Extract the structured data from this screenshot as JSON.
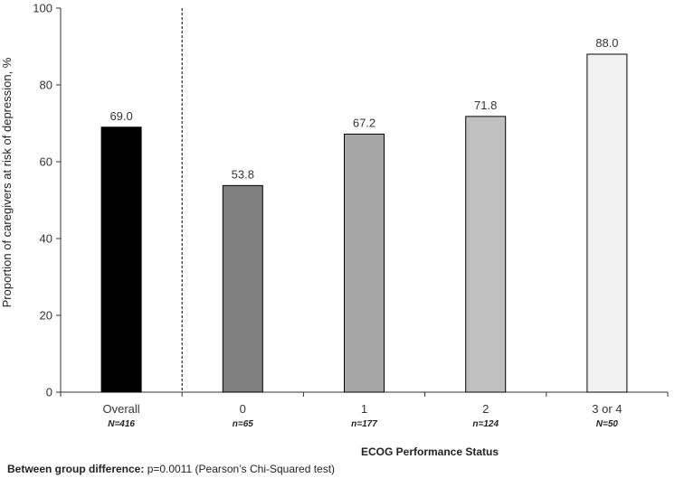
{
  "chart_data": {
    "type": "bar",
    "ylabel": "Proportion of caregivers at risk of depression, %",
    "xlabel": "ECOG Performance Status",
    "ylim": [
      0,
      100
    ],
    "yticks": [
      0,
      20,
      40,
      60,
      80,
      100
    ],
    "grid": false,
    "bars": [
      {
        "category": "Overall",
        "n_label": "N=416",
        "value": 69.0,
        "value_label": "69.0",
        "color": "#000000"
      },
      {
        "category": "0",
        "n_label": "n=65",
        "value": 53.8,
        "value_label": "53.8",
        "color": "#808080"
      },
      {
        "category": "1",
        "n_label": "n=177",
        "value": 67.2,
        "value_label": "67.2",
        "color": "#a6a6a6"
      },
      {
        "category": "2",
        "n_label": "n=124",
        "value": 71.8,
        "value_label": "71.8",
        "color": "#c0c0c0"
      },
      {
        "category": "3 or 4",
        "n_label": "N=50",
        "value": 88.0,
        "value_label": "88.0",
        "color": "#f2f2f2"
      }
    ],
    "separator_after_category": "Overall"
  },
  "footnote": {
    "label": "Between group difference:",
    "text": " p=0.0011 (Pearson’s Chi-Squared test)"
  }
}
